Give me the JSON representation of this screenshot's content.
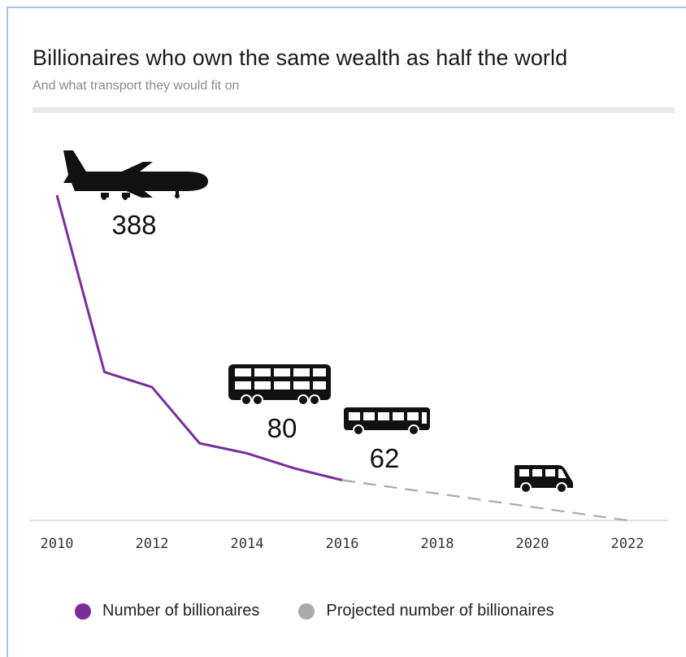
{
  "header": {
    "title": "Billionaires who own the same wealth as half the world",
    "subtitle": "And what transport they would fit on"
  },
  "legend": {
    "actual_label": "Number of billionaires",
    "projected_label": "Projected number of billionaires"
  },
  "colors": {
    "actual": "#7b2d9e",
    "projected": "#aaaaaa",
    "icon": "#111111"
  },
  "chart_data": {
    "type": "line",
    "title": "Billionaires who own the same wealth as half the world",
    "subtitle": "And what transport they would fit on",
    "xlabel": "",
    "ylabel": "",
    "x_ticks": [
      "2010",
      "2012",
      "2014",
      "2016",
      "2018",
      "2020",
      "2022"
    ],
    "xlim": [
      2010,
      2022
    ],
    "ylim": [
      0,
      388
    ],
    "grid": false,
    "legend_position": "bottom",
    "series": [
      {
        "name": "Number of billionaires",
        "style": "solid",
        "color": "#7b2d9e",
        "x": [
          2010,
          2011,
          2012,
          2013,
          2014,
          2015,
          2016
        ],
        "y": [
          388,
          177,
          159,
          92,
          80,
          62,
          48
        ]
      },
      {
        "name": "Projected number of billionaires",
        "style": "dashed",
        "color": "#aaaaaa",
        "x": [
          2016,
          2022
        ],
        "y": [
          48,
          0
        ]
      }
    ],
    "annotations": [
      {
        "x": 2010,
        "y": 388,
        "label": "388",
        "icon": "airplane-icon"
      },
      {
        "x": 2014,
        "y": 80,
        "label": "80",
        "icon": "double-decker-bus-icon"
      },
      {
        "x": 2015,
        "y": 62,
        "label": "62",
        "icon": "bus-icon"
      },
      {
        "x": 2020,
        "y": 0,
        "label": "",
        "icon": "minibus-icon"
      }
    ]
  }
}
